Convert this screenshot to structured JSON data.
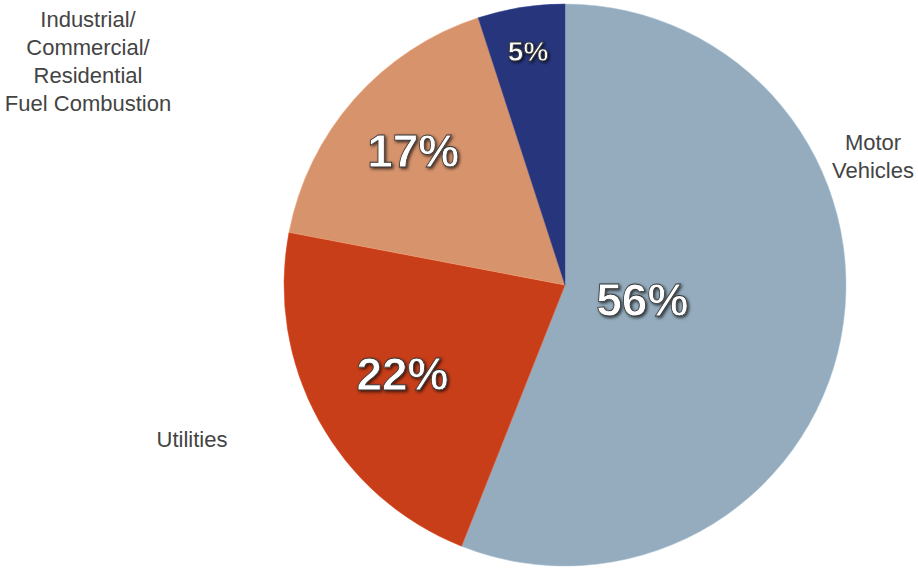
{
  "chart_data": {
    "type": "pie",
    "categories": [
      "Motor\nVehicles",
      "Utilities",
      "Industrial/\nCommercial/\nResidential\nFuel Combustion",
      null
    ],
    "values": [
      56,
      22,
      17,
      5
    ],
    "value_labels": [
      "56%",
      "22%",
      "17%",
      "5%"
    ],
    "colors": [
      "#a8c3d6",
      "#e2461c",
      "#f2a67a",
      "#2c3d8c"
    ],
    "data_labels": true
  }
}
